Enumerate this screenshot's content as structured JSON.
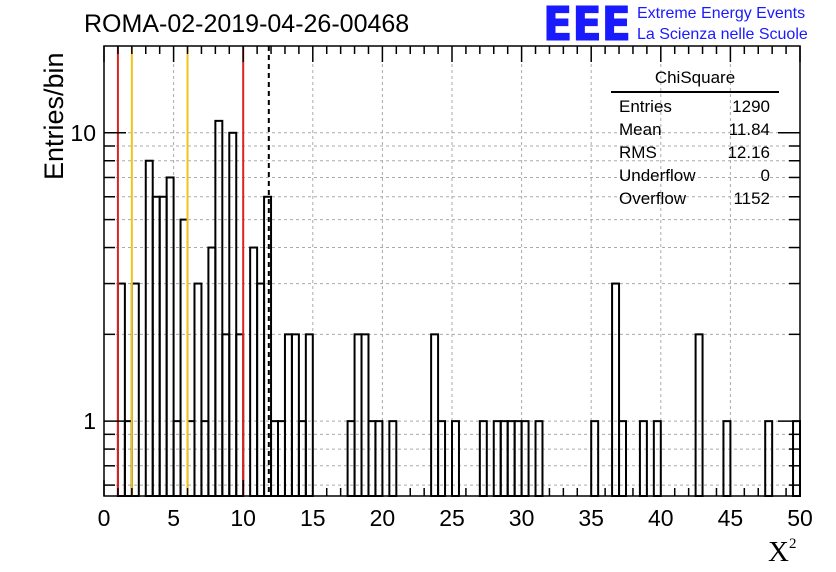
{
  "header": {
    "run_title": "ROMA-02-2019-04-26-00468",
    "logo": {
      "mark": "EEE",
      "line1": "Extreme Energy Events",
      "line2": "La Scienza nelle Scuole",
      "color": "#1a1aff"
    }
  },
  "stats_box": {
    "title": "ChiSquare",
    "rows": [
      {
        "label": "Entries",
        "value": "1290"
      },
      {
        "label": "Mean",
        "value": "11.84"
      },
      {
        "label": "RMS",
        "value": "12.16"
      },
      {
        "label": "Underflow",
        "value": "0"
      },
      {
        "label": "Overflow",
        "value": "1152"
      }
    ]
  },
  "chart_data": {
    "type": "histogram",
    "title": "ROMA-02-2019-04-26-00468",
    "xlabel": "X²",
    "ylabel": "Entries/bin",
    "xlim": [
      0,
      50
    ],
    "ylim": [
      0.55,
      20
    ],
    "yscale": "log",
    "grid": true,
    "bin_width": 0.5,
    "x_ticks": [
      "0",
      "5",
      "10",
      "15",
      "20",
      "25",
      "30",
      "35",
      "40",
      "45",
      "50"
    ],
    "y_ticks": [
      "1",
      "10"
    ],
    "values": [
      0,
      0,
      3,
      1,
      3,
      0,
      8,
      6,
      6,
      7,
      1,
      5,
      1,
      3,
      1,
      4,
      11,
      2,
      10,
      2,
      0,
      4,
      3,
      6,
      1,
      1,
      2,
      2,
      1,
      2,
      0,
      0,
      0,
      0,
      0,
      1,
      2,
      2,
      1,
      1,
      0,
      1,
      0,
      0,
      0,
      0,
      0,
      2,
      1,
      0,
      1,
      0,
      0,
      0,
      1,
      0,
      1,
      1,
      1,
      1,
      1,
      0,
      1,
      0,
      0,
      0,
      0,
      0,
      0,
      0,
      1,
      0,
      0,
      3,
      1,
      0,
      0,
      1,
      0,
      1,
      0,
      0,
      0,
      0,
      0,
      2,
      0,
      0,
      0,
      1,
      0,
      0,
      0,
      0,
      0,
      1,
      0,
      0,
      0,
      1
    ],
    "vertical_lines": [
      {
        "x": 1,
        "color": "#dd2222",
        "style": "solid"
      },
      {
        "x": 2,
        "color": "#f2c31b",
        "style": "solid"
      },
      {
        "x": 6,
        "color": "#f2c31b",
        "style": "solid"
      },
      {
        "x": 10,
        "color": "#dd2222",
        "style": "solid"
      },
      {
        "x": 11.84,
        "color": "#000000",
        "style": "dashed"
      }
    ]
  }
}
